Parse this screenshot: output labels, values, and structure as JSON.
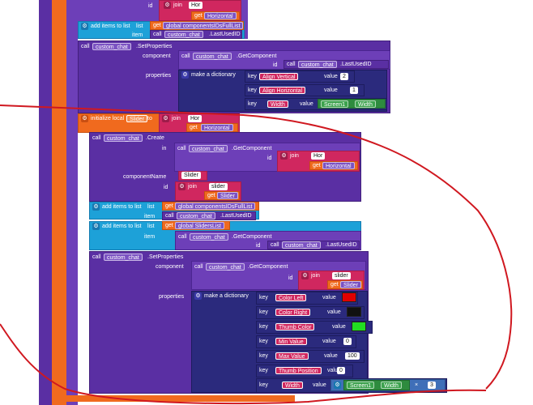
{
  "chain1": {
    "id_label": "id",
    "join_label": "join",
    "str_hor": "Hor",
    "get_label": "get",
    "var_horizontal": "Horizontal",
    "add_items_label": "add items to list",
    "list_label": "list",
    "global_ids": "global componentsIDsFullList",
    "item_label": "item",
    "call_label": "call",
    "custom_chat": "custom_chat",
    "last_used": ".LastUsedID",
    "set_props": ".SetProperties",
    "component_label": "component",
    "get_component": ".GetComponent",
    "properties_label": "properties",
    "make_dict": "make a dictionary",
    "key_label": "key",
    "value_label": "value",
    "keys": [
      "Align Vertical",
      "Align Horizontal",
      "Width"
    ],
    "values": [
      "2",
      "1"
    ],
    "screen1": "Screen1",
    "width_prop": "Width"
  },
  "chain2": {
    "init_local": "initialize local",
    "var_slider": "Slider",
    "to_label": "to",
    "in_label": "in",
    "create": ".Create",
    "component_name_label": "componentName",
    "str_slider_cap": "Slider",
    "str_slider": "slider",
    "global_sliders": "global SlidersList",
    "x_label": "×",
    "keys": [
      "Color Left",
      "Color Right",
      "Thumb Color",
      "Min Value",
      "Max Value",
      "Thumb Position",
      "Width"
    ],
    "values": [
      "0",
      "100",
      "0",
      "3"
    ],
    "colors": {
      "red": "#e00000",
      "black": "#111111",
      "green": "#22dd22"
    }
  }
}
